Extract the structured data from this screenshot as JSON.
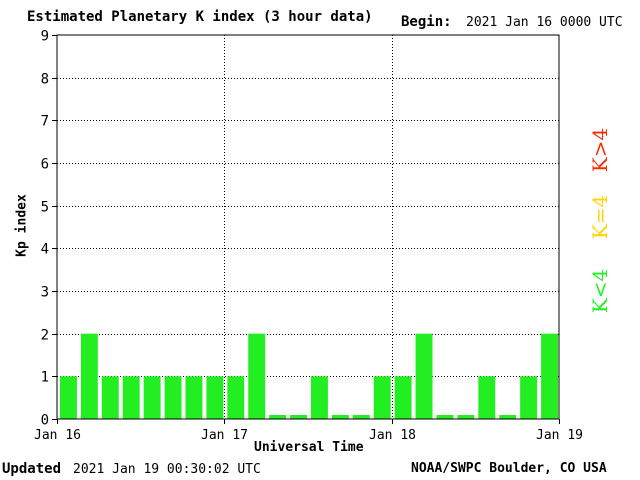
{
  "header": {
    "title": "Estimated Planetary K index (3 hour data)",
    "begin_label": "Begin:",
    "begin_value": "2021 Jan 16 0000 UTC"
  },
  "footer": {
    "updated_label": "Updated",
    "updated_value": "2021 Jan 19 00:30:02 UTC",
    "credit": "NOAA/SWPC Boulder, CO USA"
  },
  "legend": [
    {
      "label": "K>4",
      "color": "#ff2a00"
    },
    {
      "label": "K=4",
      "color": "#ffd400"
    },
    {
      "label": "K<4",
      "color": "#22ee22"
    }
  ],
  "chart_data": {
    "type": "bar",
    "title": "Estimated Planetary K index (3 hour data)",
    "xlabel": "Universal Time",
    "ylabel": "Kp index",
    "ylim": [
      0,
      9
    ],
    "yticks": [
      0,
      1,
      2,
      3,
      4,
      5,
      6,
      7,
      8,
      9
    ],
    "xticks": [
      "Jan 16",
      "Jan 17",
      "Jan 18",
      "Jan 19"
    ],
    "bin_hours": 3,
    "grid": true,
    "bar_color": "#22ee22",
    "values": [
      1,
      2,
      1,
      1,
      1,
      1,
      1,
      1,
      1,
      2,
      0,
      0,
      1,
      0,
      0,
      1,
      1,
      2,
      0,
      0,
      1,
      0,
      1,
      2
    ]
  }
}
